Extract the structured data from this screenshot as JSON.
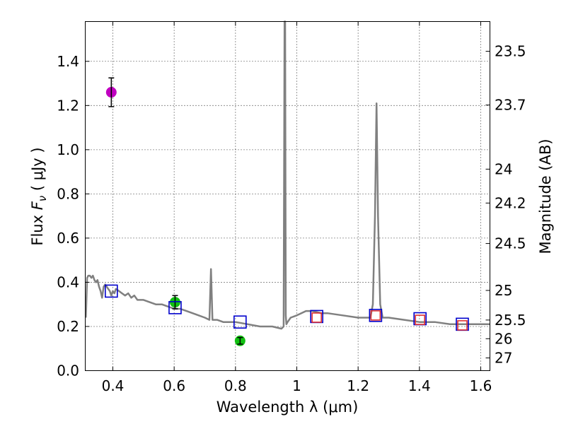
{
  "chart_data": {
    "type": "scatter",
    "title": "",
    "xlabel": "Wavelength  λ (μm)",
    "ylabel": "Flux  F_ν  ( μJy )",
    "ylabel_parts": [
      "Flux  ",
      "F",
      "ν",
      "  ( μJy )"
    ],
    "y2label": "Magnitude (AB)",
    "xlim": [
      0.31,
      1.63
    ],
    "ylim": [
      0.0,
      1.58
    ],
    "grid": true,
    "x_ticks": [
      0.4,
      0.6,
      0.8,
      1.0,
      1.2,
      1.4,
      1.6
    ],
    "x_tick_labels": [
      "0.4",
      "0.6",
      "0.8",
      "1",
      "1.2",
      "1.4",
      "1.6"
    ],
    "y_ticks": [
      0.0,
      0.2,
      0.4,
      0.6,
      0.8,
      1.0,
      1.2,
      1.4
    ],
    "y_tick_labels": [
      "0.0",
      "0.2",
      "0.4",
      "0.6",
      "0.8",
      "1.0",
      "1.2",
      "1.4"
    ],
    "mag_ticks": [
      23.5,
      23.7,
      24,
      24.2,
      24.5,
      25,
      25.5,
      26,
      27
    ],
    "mag_tick_labels": [
      "23.5",
      "23.7",
      "24",
      "24.2",
      "24.5",
      "25",
      "25.5",
      "26",
      "27"
    ],
    "series": [
      {
        "name": "model spectrum",
        "kind": "line",
        "color": "#808080",
        "x": [
          0.312,
          0.316,
          0.32,
          0.325,
          0.33,
          0.335,
          0.34,
          0.345,
          0.35,
          0.355,
          0.36,
          0.365,
          0.37,
          0.375,
          0.38,
          0.385,
          0.39,
          0.395,
          0.4,
          0.405,
          0.41,
          0.42,
          0.43,
          0.44,
          0.45,
          0.46,
          0.47,
          0.48,
          0.5,
          0.52,
          0.54,
          0.56,
          0.58,
          0.6,
          0.62,
          0.64,
          0.66,
          0.68,
          0.7,
          0.715,
          0.72,
          0.725,
          0.74,
          0.76,
          0.8,
          0.84,
          0.88,
          0.92,
          0.95,
          0.957,
          0.96,
          0.962,
          0.964,
          0.966,
          0.97,
          0.98,
          1.0,
          1.03,
          1.05,
          1.08,
          1.1,
          1.15,
          1.2,
          1.24,
          1.248,
          1.255,
          1.26,
          1.265,
          1.272,
          1.28,
          1.3,
          1.35,
          1.4,
          1.45,
          1.5,
          1.55,
          1.6,
          1.63
        ],
        "y": [
          0.24,
          0.42,
          0.43,
          0.43,
          0.42,
          0.43,
          0.41,
          0.4,
          0.41,
          0.38,
          0.36,
          0.33,
          0.38,
          0.39,
          0.38,
          0.37,
          0.36,
          0.34,
          0.36,
          0.35,
          0.37,
          0.36,
          0.35,
          0.34,
          0.35,
          0.33,
          0.34,
          0.32,
          0.32,
          0.31,
          0.3,
          0.3,
          0.29,
          0.28,
          0.28,
          0.27,
          0.26,
          0.25,
          0.24,
          0.23,
          0.46,
          0.23,
          0.23,
          0.22,
          0.22,
          0.21,
          0.2,
          0.2,
          0.19,
          0.2,
          1.58,
          1.58,
          0.25,
          0.21,
          0.22,
          0.24,
          0.25,
          0.27,
          0.27,
          0.26,
          0.26,
          0.25,
          0.24,
          0.24,
          0.3,
          0.7,
          1.21,
          0.7,
          0.3,
          0.24,
          0.24,
          0.23,
          0.22,
          0.22,
          0.21,
          0.21,
          0.21,
          0.21
        ]
      },
      {
        "name": "observed flux (magenta)",
        "kind": "points",
        "color": "#c000c0",
        "points": [
          {
            "x": 0.395,
            "y": 1.26,
            "err": 0.065
          }
        ]
      },
      {
        "name": "observed flux (green)",
        "kind": "points",
        "color": "#10c010",
        "points": [
          {
            "x": 0.603,
            "y": 0.31,
            "err": 0.03
          },
          {
            "x": 0.815,
            "y": 0.135,
            "err": 0.015
          }
        ]
      },
      {
        "name": "model photometry (blue squares)",
        "kind": "squares",
        "color": "#0000cc",
        "points": [
          {
            "x": 0.395,
            "y": 0.36
          },
          {
            "x": 0.603,
            "y": 0.285
          },
          {
            "x": 0.815,
            "y": 0.22
          },
          {
            "x": 1.065,
            "y": 0.245
          },
          {
            "x": 1.257,
            "y": 0.25
          },
          {
            "x": 1.402,
            "y": 0.235
          },
          {
            "x": 1.54,
            "y": 0.21
          }
        ]
      },
      {
        "name": "observed photometry (red squares)",
        "kind": "squares",
        "color": "#e03030",
        "points": [
          {
            "x": 1.065,
            "y": 0.24
          },
          {
            "x": 1.257,
            "y": 0.25
          },
          {
            "x": 1.402,
            "y": 0.23
          },
          {
            "x": 1.54,
            "y": 0.205
          }
        ]
      }
    ]
  }
}
